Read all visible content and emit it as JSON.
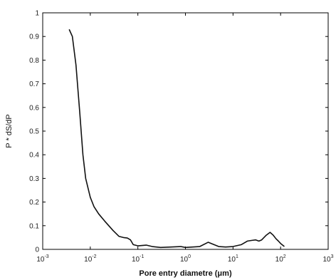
{
  "chart_data": {
    "type": "line",
    "title": "",
    "xlabel": "Pore entry diametre (μm)",
    "ylabel": "P * dS/dP",
    "x_scale": "log",
    "xlim": [
      0.001,
      1000
    ],
    "ylim": [
      0,
      1
    ],
    "grid": false,
    "x_ticks": [
      0.001,
      0.01,
      0.1,
      1,
      10,
      100,
      1000
    ],
    "x_tick_labels": [
      {
        "base": "10",
        "exp": "-3"
      },
      {
        "base": "10",
        "exp": "-2"
      },
      {
        "base": "10",
        "exp": "-1"
      },
      {
        "base": "10",
        "exp": "0"
      },
      {
        "base": "10",
        "exp": "1"
      },
      {
        "base": "10",
        "exp": "2"
      },
      {
        "base": "10",
        "exp": "3"
      }
    ],
    "y_ticks": [
      0,
      0.1,
      0.2,
      0.3,
      0.4,
      0.5,
      0.6,
      0.7,
      0.8,
      0.9,
      1
    ],
    "y_tick_labels": [
      "0",
      "0.1",
      "0.2",
      "0.3",
      "0.4",
      "0.5",
      "0.6",
      "0.7",
      "0.8",
      "0.9",
      "1"
    ],
    "series": [
      {
        "color": "#111111",
        "x": [
          0.0036,
          0.0042,
          0.005,
          0.006,
          0.007,
          0.008,
          0.01,
          0.012,
          0.015,
          0.02,
          0.03,
          0.04,
          0.05,
          0.06,
          0.07,
          0.08,
          0.1,
          0.15,
          0.2,
          0.3,
          0.5,
          0.8,
          1,
          2,
          3,
          4,
          5,
          7,
          10,
          15,
          20,
          25,
          30,
          35,
          40,
          50,
          60,
          70,
          80,
          90,
          100,
          120
        ],
        "y": [
          0.93,
          0.9,
          0.78,
          0.58,
          0.4,
          0.3,
          0.22,
          0.18,
          0.15,
          0.12,
          0.08,
          0.055,
          0.05,
          0.048,
          0.04,
          0.02,
          0.015,
          0.018,
          0.012,
          0.008,
          0.01,
          0.012,
          0.008,
          0.012,
          0.03,
          0.02,
          0.012,
          0.01,
          0.012,
          0.02,
          0.035,
          0.038,
          0.04,
          0.035,
          0.04,
          0.06,
          0.072,
          0.06,
          0.045,
          0.035,
          0.025,
          0.012
        ]
      }
    ]
  }
}
